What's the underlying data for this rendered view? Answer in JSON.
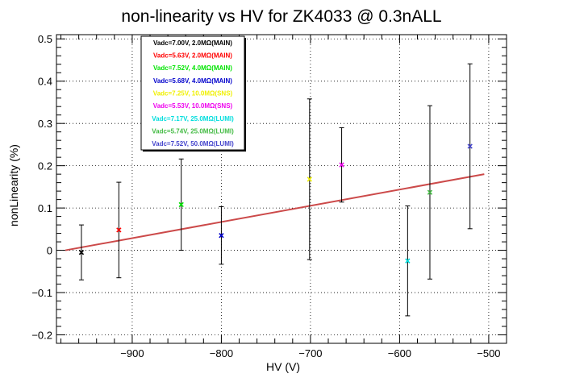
{
  "chart_data": {
    "type": "scatter",
    "title": "non-linearity vs HV for ZK4033 @ 0.3nALL",
    "xlabel": "HV (V)",
    "ylabel": "nonLinearity (%)",
    "xlim": [
      -985,
      -480
    ],
    "ylim": [
      -0.22,
      0.51
    ],
    "xticks": [
      -900,
      -800,
      -700,
      -600,
      -500
    ],
    "xtick_labels": [
      "−900",
      "−800",
      "−700",
      "−600",
      "−500"
    ],
    "yticks": [
      -0.2,
      -0.1,
      0,
      0.1,
      0.2,
      0.3,
      0.4,
      0.5
    ],
    "ytick_labels": [
      "−0.2",
      "−0.1",
      "0",
      "0.1",
      "0.2",
      "0.3",
      "0.4",
      "0.5"
    ],
    "grid": true,
    "legend_position": "top-left",
    "series": [
      {
        "name": "Vadc=7.00V, 2.0MΩ(MAIN)",
        "color": "#000000",
        "x": -957,
        "y": -0.005,
        "err": 0.065
      },
      {
        "name": "Vadc=5.63V, 2.0MΩ(MAIN)",
        "color": "#ff0000",
        "x": -915,
        "y": 0.048,
        "err": 0.113
      },
      {
        "name": "Vadc=7.52V, 4.0MΩ(MAIN)",
        "color": "#00e400",
        "x": -845,
        "y": 0.108,
        "err": 0.108
      },
      {
        "name": "Vadc=5.68V, 4.0MΩ(MAIN)",
        "color": "#0000cc",
        "x": -800,
        "y": 0.035,
        "err": 0.068
      },
      {
        "name": "Vadc=7.25V, 10.0MΩ(SNS)",
        "color": "#f0f000",
        "x": -701,
        "y": 0.168,
        "err": 0.19
      },
      {
        "name": "Vadc=5.53V, 10.0MΩ(SNS)",
        "color": "#ee00ee",
        "x": -665,
        "y": 0.202,
        "err": 0.088
      },
      {
        "name": "Vadc=7.17V, 25.0MΩ(LUMI)",
        "color": "#00dddd",
        "x": -591,
        "y": -0.025,
        "err": 0.13
      },
      {
        "name": "Vadc=5.74V, 25.0MΩ(LUMI)",
        "color": "#44bb44",
        "x": -566,
        "y": 0.137,
        "err": 0.205
      },
      {
        "name": "Vadc=7.52V, 50.0MΩ(LUMI)",
        "color": "#4444cc",
        "x": -521,
        "y": 0.246,
        "err": 0.195
      }
    ],
    "fit_line": {
      "color": "#cc4a4a",
      "x": [
        -975,
        -505
      ],
      "y": [
        0.0,
        0.18
      ]
    }
  }
}
